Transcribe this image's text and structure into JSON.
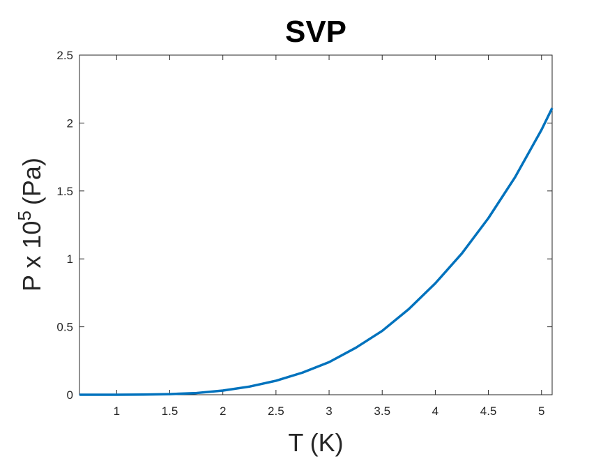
{
  "chart_data": {
    "type": "line",
    "title": "SVP",
    "xlabel": "T (K)",
    "ylabel": "P x 10",
    "ylabel_sup": "5",
    "ylabel_suffix": "(Pa)",
    "x": [
      0.65,
      1,
      1.25,
      1.5,
      1.75,
      2,
      2.25,
      2.5,
      2.75,
      3,
      3.25,
      3.5,
      3.75,
      4,
      4.25,
      4.5,
      4.75,
      5,
      5.1
    ],
    "series": [
      {
        "name": "SVP",
        "color": "#0072bd",
        "values": [
          0,
          0.0002,
          0.0012,
          0.0047,
          0.0125,
          0.031,
          0.06,
          0.103,
          0.163,
          0.24,
          0.345,
          0.47,
          0.63,
          0.82,
          1.04,
          1.3,
          1.6,
          1.95,
          2.11
        ]
      }
    ],
    "xlim": [
      0.65,
      5.1
    ],
    "ylim": [
      0,
      2.5
    ],
    "xticks": [
      1,
      1.5,
      2,
      2.5,
      3,
      3.5,
      4,
      4.5,
      5
    ],
    "yticks": [
      0,
      0.5,
      1,
      1.5,
      2,
      2.5
    ]
  }
}
